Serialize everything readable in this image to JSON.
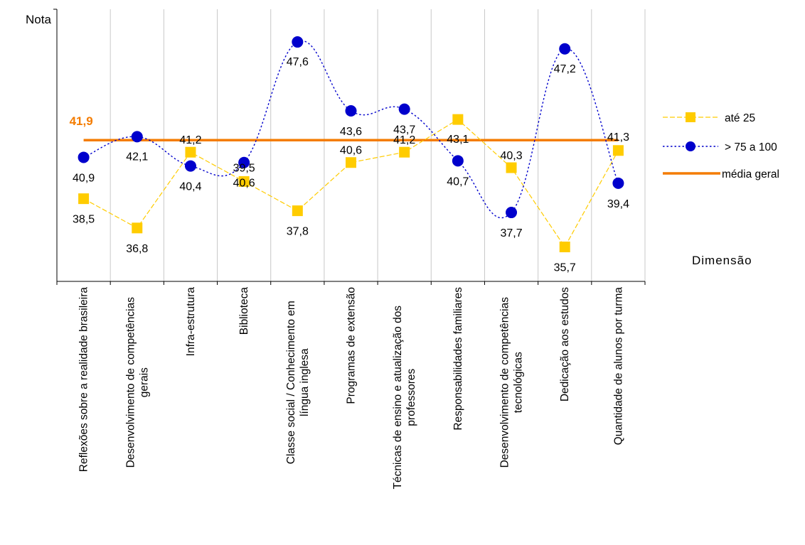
{
  "chart_data": {
    "type": "line",
    "ylabel": "Nota",
    "xlabel": "Dimensão",
    "ylim": [
      33.7,
      49.5
    ],
    "grid": "vertical",
    "legend_position": "right",
    "categories": [
      [
        "Reflexões sobre a realidade brasileira"
      ],
      [
        "Desenvolvimento de competências",
        "gerais"
      ],
      [
        "Infra-estrutura"
      ],
      [
        "Biblioteca"
      ],
      [
        "Classe social / Conhecimento em",
        "língua inglesa"
      ],
      [
        "Programas de extensão"
      ],
      [
        "Técnicas de ensino e atualização dos",
        "professores"
      ],
      [
        "Responsabilidades familiares"
      ],
      [
        "Desenvolvimento de competências",
        "tecnológicas"
      ],
      [
        "Dedicação aos estudos"
      ],
      [
        "Quantidade de alunos por turma"
      ]
    ],
    "series": [
      {
        "name": "até 25",
        "color": "#FFCC00",
        "marker": "square",
        "style": "dashed-thin",
        "values": [
          38.5,
          36.8,
          41.2,
          39.5,
          37.8,
          40.6,
          41.2,
          43.1,
          40.3,
          35.7,
          41.3
        ],
        "labels": [
          "38,5",
          "36,8",
          "41,2",
          "39,5",
          "37,8",
          "40,6",
          "41,2",
          "43,1",
          "40,3",
          "35,7",
          "41,3"
        ]
      },
      {
        "name": "> 75 a 100",
        "color": "#0000CC",
        "marker": "circle",
        "style": "dotted",
        "values": [
          40.9,
          42.1,
          40.4,
          40.6,
          47.6,
          43.6,
          43.7,
          40.7,
          37.7,
          47.2,
          39.4
        ],
        "labels": [
          "40,9",
          "42,1",
          "40,4",
          "40,6",
          "47,6",
          "43,6",
          "43,7",
          "40,7",
          "37,7",
          "47,2",
          "39,4"
        ]
      },
      {
        "name": "média geral",
        "color": "#F47C00",
        "style": "solid",
        "value": 41.9,
        "label": "41,9"
      }
    ]
  }
}
